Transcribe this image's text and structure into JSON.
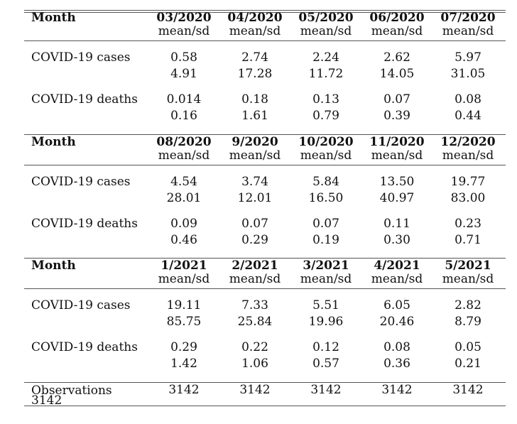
{
  "panels": [
    {
      "header_label": "Month",
      "months": [
        "03/2020",
        "04/2020",
        "05/2020",
        "06/2020",
        "07/2020"
      ],
      "stat_label": "mean/sd",
      "rows": [
        {
          "label": "COVID-19 cases",
          "mean": [
            "0.58",
            "2.74",
            "2.24",
            "2.62",
            "5.97"
          ],
          "sd": [
            "4.91",
            "17.28",
            "11.72",
            "14.05",
            "31.05"
          ]
        },
        {
          "label": "COVID-19 deaths",
          "mean": [
            "0.014",
            "0.18",
            "0.13",
            "0.07",
            "0.08"
          ],
          "sd": [
            "0.16",
            "1.61",
            "0.79",
            "0.39",
            "0.44"
          ]
        }
      ]
    },
    {
      "header_label": "Month",
      "months": [
        "08/2020",
        "9/2020",
        "10/2020",
        "11/2020",
        "12/2020"
      ],
      "stat_label": "mean/sd",
      "rows": [
        {
          "label": "COVID-19 cases",
          "mean": [
            "4.54",
            "3.74",
            "5.84",
            "13.50",
            "19.77"
          ],
          "sd": [
            "28.01",
            "12.01",
            "16.50",
            "40.97",
            "83.00"
          ]
        },
        {
          "label": "COVID-19 deaths",
          "mean": [
            "0.09",
            "0.07",
            "0.07",
            "0.11",
            "0.23"
          ],
          "sd": [
            "0.46",
            "0.29",
            "0.19",
            "0.30",
            "0.71"
          ]
        }
      ]
    },
    {
      "header_label": "Month",
      "months": [
        "1/2021",
        "2/2021",
        "3/2021",
        "4/2021",
        "5/2021"
      ],
      "stat_label": "mean/sd",
      "rows": [
        {
          "label": "COVID-19 cases",
          "mean": [
            "19.11",
            "7.33",
            "5.51",
            "6.05",
            "2.82"
          ],
          "sd": [
            "85.75",
            "25.84",
            "19.96",
            "20.46",
            "8.79"
          ]
        },
        {
          "label": "COVID-19 deaths",
          "mean": [
            "0.29",
            "0.22",
            "0.12",
            "0.08",
            "0.05"
          ],
          "sd": [
            "1.42",
            "1.06",
            "0.57",
            "0.36",
            "0.21"
          ]
        }
      ]
    }
  ],
  "observations": {
    "label": "Observations",
    "label_value": "3142",
    "values": [
      "3142",
      "3142",
      "3142",
      "3142",
      "3142"
    ]
  }
}
